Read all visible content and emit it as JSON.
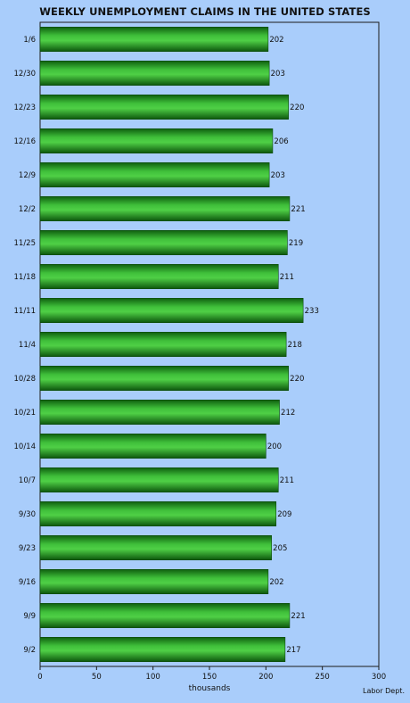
{
  "chart_data": {
    "type": "bar",
    "orientation": "horizontal",
    "title": "WEEKLY UNEMPLOYMENT CLAIMS IN THE UNITED STATES",
    "xlabel": "thousands",
    "source": "Labor Dept.",
    "categories": [
      "1/6",
      "12/30",
      "12/23",
      "12/16",
      "12/9",
      "12/2",
      "11/25",
      "11/18",
      "11/11",
      "11/4",
      "10/28",
      "10/21",
      "10/14",
      "10/7",
      "9/30",
      "9/23",
      "9/16",
      "9/9",
      "9/2"
    ],
    "values": [
      202,
      203,
      220,
      206,
      203,
      221,
      219,
      211,
      233,
      218,
      220,
      212,
      200,
      211,
      209,
      205,
      202,
      221,
      217
    ],
    "xlim": [
      0,
      300
    ],
    "xticks": [
      0,
      50,
      100,
      150,
      200,
      250,
      300
    ],
    "data_labels": true,
    "grid": false,
    "bar_color": "#1e8f1e",
    "background": "#a9cdfb"
  }
}
